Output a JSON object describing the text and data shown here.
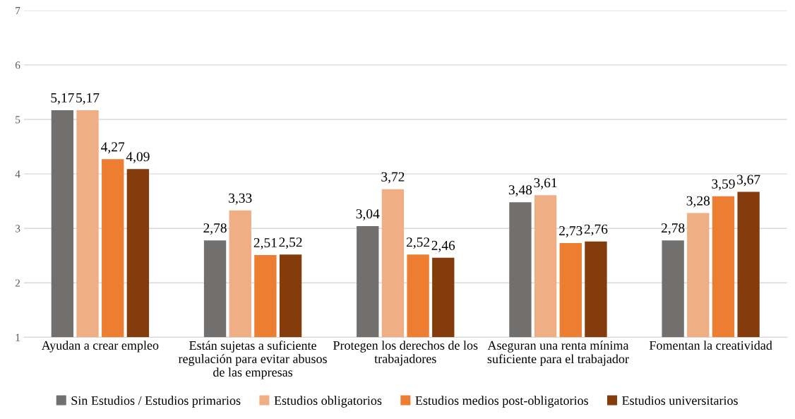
{
  "chart_data": {
    "type": "bar",
    "categories": [
      "Ayudan a crear empleo",
      "Están sujetas a suficiente\nregulación para evitar abusos\nde las empresas",
      "Protegen los derechos de los\ntrabajadores",
      "Aseguran una renta mínima\nsuficiente para el trabajador",
      "Fomentan la creatividad"
    ],
    "series": [
      {
        "name": "Sin Estudios / Estudios primarios",
        "color": "#72706f",
        "values": [
          5.17,
          2.78,
          3.04,
          3.48,
          2.78
        ],
        "value_labels": [
          "5,17",
          "2,78",
          "3,04",
          "3,48",
          "2,78"
        ]
      },
      {
        "name": "Estudios obligatorios",
        "color": "#f0ae84",
        "values": [
          5.17,
          3.33,
          3.72,
          3.61,
          3.28
        ],
        "value_labels": [
          "5,17",
          "3,33",
          "3,72",
          "3,61",
          "3,28"
        ]
      },
      {
        "name": "Estudios medios post-obligatorios",
        "color": "#ed7d31",
        "values": [
          4.27,
          2.51,
          2.52,
          2.73,
          3.59
        ],
        "value_labels": [
          "4,27",
          "2,51",
          "2,52",
          "2,73",
          "3,59"
        ]
      },
      {
        "name": "Estudios universitarios",
        "color": "#843c0c",
        "values": [
          4.09,
          2.52,
          2.46,
          2.76,
          3.67
        ],
        "value_labels": [
          "4,09",
          "2,52",
          "2,46",
          "2,76",
          "3,67"
        ]
      }
    ],
    "ylim": [
      1,
      7
    ],
    "yticks": [
      1,
      2,
      3,
      4,
      5,
      6,
      7
    ],
    "grid": "y",
    "legend": "bottom"
  }
}
